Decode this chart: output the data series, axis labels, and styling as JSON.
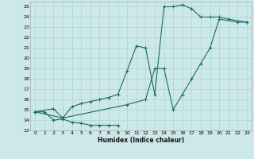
{
  "xlabel": "Humidex (Indice chaleur)",
  "bg_color": "#cce8e8",
  "line_color": "#1a6b6b",
  "grid_color": "#aad4d4",
  "xlim": [
    -0.5,
    23.5
  ],
  "ylim": [
    13,
    25.5
  ],
  "yticks": [
    13,
    14,
    15,
    16,
    17,
    18,
    19,
    20,
    21,
    22,
    23,
    24,
    25
  ],
  "xticks": [
    0,
    1,
    2,
    3,
    4,
    5,
    6,
    7,
    8,
    9,
    10,
    11,
    12,
    13,
    14,
    15,
    16,
    17,
    18,
    19,
    20,
    21,
    22,
    23
  ],
  "lines": [
    [
      [
        0,
        14.8
      ],
      [
        1,
        14.8
      ],
      [
        2,
        14.0
      ],
      [
        3,
        14.1
      ],
      [
        4,
        13.8
      ],
      [
        5,
        13.7
      ],
      [
        6,
        13.5
      ],
      [
        7,
        13.5
      ],
      [
        8,
        13.5
      ],
      [
        9,
        13.5
      ]
    ],
    [
      [
        0,
        14.8
      ],
      [
        2,
        15.1
      ],
      [
        3,
        14.2
      ],
      [
        4,
        15.3
      ],
      [
        5,
        15.6
      ],
      [
        6,
        15.8
      ],
      [
        7,
        16.0
      ],
      [
        8,
        16.2
      ],
      [
        9,
        16.5
      ],
      [
        10,
        18.8
      ],
      [
        11,
        21.2
      ],
      [
        12,
        21.0
      ],
      [
        13,
        16.5
      ],
      [
        14,
        25.0
      ],
      [
        15,
        25.0
      ],
      [
        16,
        25.2
      ],
      [
        17,
        24.8
      ],
      [
        18,
        24.0
      ],
      [
        19,
        24.0
      ],
      [
        20,
        24.0
      ],
      [
        21,
        23.8
      ],
      [
        23,
        23.5
      ]
    ],
    [
      [
        0,
        14.8
      ],
      [
        3,
        14.2
      ],
      [
        10,
        15.5
      ],
      [
        12,
        16.0
      ],
      [
        13,
        19.0
      ],
      [
        14,
        19.0
      ],
      [
        15,
        15.0
      ],
      [
        16,
        16.5
      ],
      [
        17,
        18.0
      ],
      [
        18,
        19.5
      ],
      [
        19,
        21.0
      ],
      [
        20,
        23.8
      ],
      [
        22,
        23.5
      ],
      [
        23,
        23.5
      ]
    ]
  ]
}
